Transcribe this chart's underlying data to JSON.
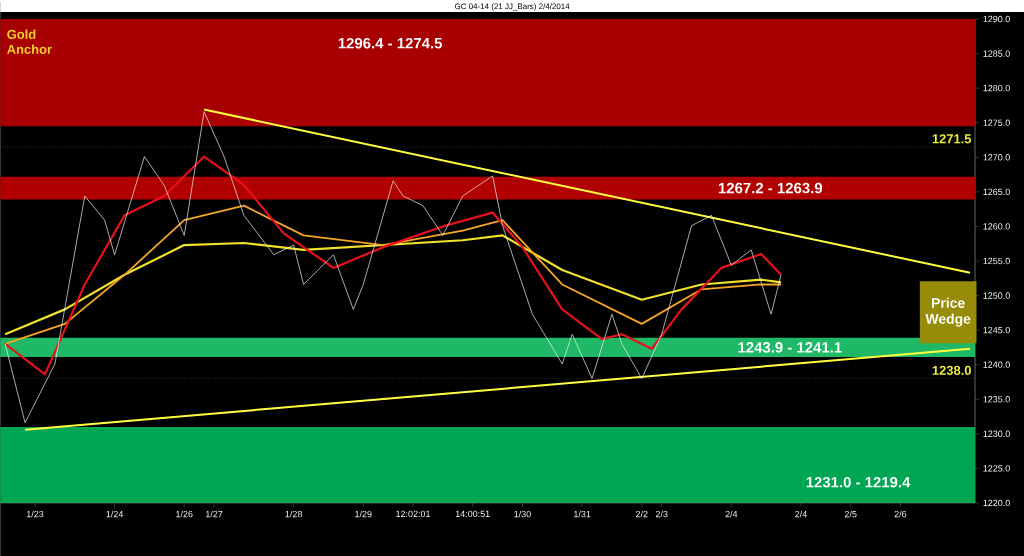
{
  "chart_data": {
    "type": "line",
    "title": "GC 04-14 (21 JJ_Bars)  2/4/2014",
    "line_style": "solid",
    "categories": [
      null,
      null,
      null,
      "1/23",
      null,
      null,
      null,
      null,
      null,
      null,
      null,
      "1/24",
      null,
      null,
      null,
      null,
      null,
      null,
      "1/26",
      null,
      null,
      "1/27",
      null,
      null,
      null,
      null,
      null,
      null,
      null,
      "1/28",
      null,
      null,
      null,
      null,
      null,
      null,
      "1/29",
      null,
      null,
      null,
      null,
      "12:02:01",
      null,
      null,
      null,
      null,
      null,
      "14:00:51",
      null,
      null,
      null,
      null,
      "1/30",
      null,
      null,
      null,
      null,
      null,
      "1/31",
      null,
      null,
      null,
      null,
      null,
      "2/2",
      null,
      "2/3",
      null,
      null,
      null,
      null,
      null,
      null,
      "2/4",
      null,
      null,
      null,
      null,
      null,
      null,
      "2/4",
      null,
      null,
      null,
      null,
      "2/5",
      null,
      null,
      null,
      null,
      "2/6",
      null,
      null,
      null,
      null,
      null,
      null,
      null
    ],
    "ylim": [
      1220,
      1290
    ],
    "yticks": [
      {
        "value": 1220,
        "label": "1220.0"
      },
      {
        "value": 1225,
        "label": "1225.0"
      },
      {
        "value": 1230,
        "label": "1230.0"
      },
      {
        "value": 1235,
        "label": "1235.0"
      },
      {
        "value": 1240,
        "label": "1240.0"
      },
      {
        "value": 1245,
        "label": "1245.0"
      },
      {
        "value": 1250,
        "label": "1250.0"
      },
      {
        "value": 1255,
        "label": "1255.0"
      },
      {
        "value": 1260,
        "label": "1260.0"
      },
      {
        "value": 1265,
        "label": "1265.0"
      },
      {
        "value": 1270,
        "label": "1270.0"
      },
      {
        "value": 1275,
        "label": "1275.0"
      },
      {
        "value": 1280,
        "label": "1280.0"
      },
      {
        "value": 1285,
        "label": "1285.0"
      },
      {
        "value": 1290,
        "label": "1290.0"
      }
    ],
    "bands": [
      {
        "axis": "y",
        "from": 1274.5,
        "to": 1290,
        "label": "1296.4 - 1274.5",
        "color": "#a80000"
      },
      {
        "axis": "y",
        "from": 1263.9,
        "to": 1267.2,
        "label": "1267.2 - 1263.9",
        "color": "#b00000"
      },
      {
        "axis": "y",
        "from": 1241.1,
        "to": 1243.9,
        "label": "1243.9 - 1241.1",
        "color": "#1fb866"
      },
      {
        "axis": "y",
        "from": 1220,
        "to": 1231.0,
        "label": "1231.0 - 1219.4",
        "color": "#00a651"
      }
    ],
    "ref_lines": [
      {
        "axis": "y",
        "value": 1271.5,
        "label": "1271.5",
        "color": "#f2f03a",
        "line_style": "dotted"
      },
      {
        "axis": "y",
        "value": 1238.0,
        "label": "1238.0",
        "color": "#f2f03a",
        "line_style": "dotted"
      }
    ],
    "annotations": [
      "Gold Anchor",
      "Price Wedge"
    ],
    "series": [
      {
        "color": "#f2f2f2",
        "values": [
          1243.0,
          null,
          1231.6,
          null,
          null,
          1240.1,
          null,
          null,
          1264.4,
          null,
          1260.9,
          1255.9,
          null,
          null,
          1270.1,
          null,
          1265.9,
          null,
          1258.7,
          null,
          1276.6,
          null,
          1270.1,
          null,
          1261.6,
          null,
          null,
          1255.9,
          null,
          1257.3,
          1251.6,
          null,
          null,
          1255.9,
          null,
          1248.0,
          1251.6,
          null,
          null,
          1266.6,
          1264.4,
          null,
          1263.0,
          null,
          1258.7,
          null,
          1264.4,
          null,
          null,
          1267.3,
          1260.1,
          null,
          null,
          1247.3,
          null,
          null,
          1240.1,
          1244.4,
          null,
          1238.0,
          null,
          1247.3,
          1243.0,
          null,
          1238.0,
          null,
          1244.4,
          null,
          null,
          1260.1,
          null,
          1261.6,
          null,
          1254.4,
          null,
          1256.6,
          null,
          1247.3,
          1253.0,
          null,
          null,
          null,
          null,
          null,
          null,
          null,
          null,
          null,
          null,
          null,
          null,
          null,
          null,
          null,
          null,
          null,
          null,
          null
        ]
      },
      {
        "color": "#e8101a",
        "values": [
          1243.0,
          null,
          null,
          null,
          1238.6,
          null,
          null,
          null,
          1251.6,
          null,
          null,
          null,
          1261.6,
          null,
          null,
          null,
          1264.4,
          null,
          null,
          null,
          1270.1,
          null,
          null,
          null,
          1266.0,
          null,
          null,
          null,
          1259.0,
          null,
          null,
          null,
          null,
          1254.0,
          null,
          null,
          null,
          null,
          1257.0,
          null,
          null,
          null,
          null,
          null,
          1260.0,
          null,
          null,
          null,
          null,
          1262.0,
          null,
          null,
          1257.0,
          null,
          null,
          null,
          1248.0,
          null,
          null,
          null,
          1243.7,
          null,
          1244.4,
          null,
          null,
          1242.3,
          null,
          null,
          1248.0,
          null,
          null,
          null,
          1254.0,
          null,
          null,
          null,
          1256.0,
          null,
          1253.0,
          null,
          null,
          null,
          null,
          null,
          null,
          null,
          null,
          null,
          null,
          null,
          null,
          null,
          null,
          null,
          null,
          null,
          null,
          null
        ]
      },
      {
        "color": "#f5a623",
        "values": [
          1243.0,
          null,
          null,
          null,
          null,
          null,
          1245.9,
          null,
          null,
          null,
          null,
          null,
          1253.0,
          null,
          null,
          null,
          null,
          null,
          1260.9,
          null,
          null,
          null,
          null,
          null,
          1263.0,
          null,
          null,
          null,
          null,
          null,
          1258.7,
          null,
          null,
          null,
          null,
          null,
          null,
          null,
          1257.3,
          null,
          null,
          null,
          null,
          null,
          null,
          null,
          1259.4,
          null,
          null,
          null,
          1260.9,
          null,
          null,
          null,
          null,
          null,
          1251.6,
          null,
          null,
          null,
          null,
          null,
          null,
          null,
          1245.9,
          null,
          null,
          null,
          null,
          null,
          1250.9,
          null,
          null,
          null,
          null,
          null,
          1251.6,
          null,
          1251.6,
          null,
          null,
          null,
          null,
          null,
          null,
          null,
          null,
          null,
          null,
          null,
          null,
          null,
          null,
          null,
          null,
          null,
          null,
          null
        ]
      },
      {
        "color": "#f2e02a",
        "values": [
          1244.4,
          null,
          null,
          null,
          null,
          null,
          1248.0,
          null,
          null,
          null,
          null,
          null,
          1253.0,
          null,
          null,
          null,
          null,
          null,
          1257.3,
          null,
          null,
          null,
          null,
          null,
          1257.6,
          null,
          null,
          null,
          null,
          null,
          1256.6,
          null,
          null,
          null,
          null,
          null,
          null,
          null,
          1257.3,
          null,
          null,
          null,
          null,
          null,
          null,
          null,
          1258.0,
          null,
          null,
          null,
          1258.7,
          null,
          null,
          null,
          null,
          null,
          1253.7,
          null,
          null,
          null,
          null,
          null,
          null,
          null,
          1249.4,
          null,
          null,
          null,
          null,
          null,
          1251.6,
          null,
          null,
          null,
          null,
          null,
          1252.3,
          null,
          1251.9,
          null,
          null,
          null,
          null,
          null,
          null,
          null,
          null,
          null,
          null,
          null,
          null,
          null,
          null,
          null,
          null,
          null,
          null,
          null
        ]
      },
      {
        "color": "#ffff40",
        "values": [
          null,
          null,
          null,
          null,
          null,
          null,
          null,
          null,
          null,
          null,
          null,
          null,
          null,
          null,
          null,
          null,
          null,
          null,
          null,
          null,
          1276.9,
          null,
          null,
          null,
          null,
          null,
          null,
          null,
          null,
          null,
          null,
          null,
          null,
          null,
          null,
          null,
          null,
          null,
          null,
          null,
          null,
          null,
          null,
          null,
          null,
          null,
          null,
          null,
          null,
          null,
          null,
          null,
          null,
          null,
          null,
          null,
          null,
          null,
          null,
          null,
          null,
          null,
          null,
          null,
          null,
          null,
          null,
          null,
          null,
          null,
          null,
          null,
          null,
          null,
          null,
          null,
          null,
          null,
          null,
          null,
          null,
          null,
          null,
          null,
          null,
          null,
          null,
          null,
          null,
          null,
          null,
          null,
          null,
          null,
          null,
          null,
          null,
          1253.3
        ]
      },
      {
        "color": "#ffff40",
        "values": [
          null,
          null,
          1230.6,
          null,
          null,
          null,
          null,
          null,
          null,
          null,
          null,
          null,
          null,
          null,
          null,
          null,
          null,
          null,
          null,
          null,
          null,
          null,
          null,
          null,
          null,
          null,
          null,
          null,
          null,
          null,
          null,
          null,
          null,
          null,
          null,
          null,
          null,
          null,
          null,
          null,
          null,
          null,
          null,
          null,
          null,
          null,
          null,
          null,
          null,
          null,
          null,
          null,
          null,
          null,
          null,
          null,
          null,
          null,
          null,
          null,
          null,
          null,
          null,
          null,
          null,
          null,
          null,
          null,
          null,
          null,
          null,
          null,
          null,
          null,
          null,
          null,
          null,
          null,
          null,
          null,
          null,
          null,
          null,
          null,
          null,
          null,
          null,
          null,
          null,
          null,
          null,
          null,
          null,
          null,
          null,
          null,
          null,
          1242.3
        ]
      }
    ]
  }
}
